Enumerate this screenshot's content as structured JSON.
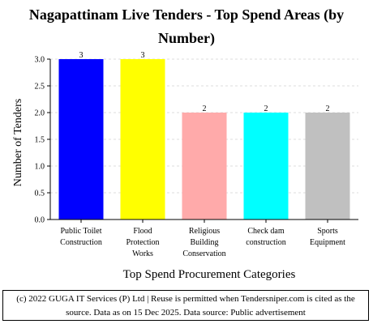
{
  "chart_data": {
    "type": "bar",
    "title": "Nagapattinam Live Tenders - Top Spend Areas (by Number)",
    "xlabel": "Top Spend Procurement Categories",
    "ylabel": "Number of Tenders",
    "categories": [
      "Public Toilet Construction",
      "Flood Protection Works",
      "Religious Building Conservation",
      "Check dam construction",
      "Sports Equipment"
    ],
    "category_lines": [
      [
        "Public Toilet",
        "Construction"
      ],
      [
        "Flood",
        "Protection",
        "Works"
      ],
      [
        "Religious",
        "Building",
        "Conservation"
      ],
      [
        "Check dam",
        "construction"
      ],
      [
        "Sports",
        "Equipment"
      ]
    ],
    "values": [
      3,
      3,
      2,
      2,
      2
    ],
    "data_labels": [
      "3",
      "3",
      "2",
      "2",
      "2"
    ],
    "colors": [
      "#0000ff",
      "#ffff00",
      "#ffaaaa",
      "#00ffff",
      "#c0c0c0"
    ],
    "ylim": [
      0,
      3.0
    ],
    "yticks": [
      0.0,
      0.5,
      1.0,
      1.5,
      2.0,
      2.5,
      3.0
    ],
    "ytick_labels": [
      "0.0",
      "0.5",
      "1.0",
      "1.5",
      "2.0",
      "2.5",
      "3.0"
    ],
    "grid": true,
    "legend": "none"
  },
  "footer": {
    "line1": "(c) 2022 GUGA IT Services (P) Ltd | Reuse is permitted when Tendersniper.com is cited as the",
    "line2": "source. Data as on 15 Dec 2025. Data source: Public advertisement"
  }
}
